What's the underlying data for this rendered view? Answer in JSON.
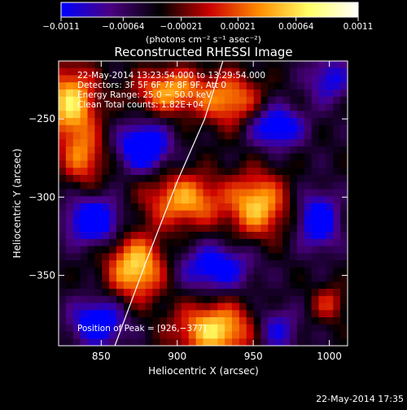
{
  "chart_data": {
    "type": "heatmap",
    "title": "Reconstructed RHESSI Image",
    "xlabel": "Heliocentric X (arcsec)",
    "ylabel": "Heliocentric Y (arcsec)",
    "xlim": [
      822,
      1012
    ],
    "ylim": [
      -395,
      -213
    ],
    "x_ticks": [
      850,
      900,
      950,
      1000
    ],
    "y_ticks": [
      -250,
      -300,
      -350
    ],
    "x_tick_labels": [
      "850",
      "900",
      "950",
      "1000"
    ],
    "y_tick_labels": [
      "−250",
      "−300",
      "−350"
    ],
    "colorbar": {
      "range": [
        -0.0011,
        0.0011
      ],
      "tick_values": [
        -0.0011,
        -0.00064,
        -0.00021,
        0.00021,
        0.00064,
        0.0011
      ],
      "tick_labels": [
        "−0.0011",
        "−0.00064",
        "−0.00021",
        "0.00021",
        "0.00064",
        "0.0011"
      ],
      "unit_text": "(photons cm⁻² s⁻¹ asec⁻²)",
      "colormap": [
        "#0000ff",
        "#4b0082",
        "#000000",
        "#cc0000",
        "#ff8c00",
        "#ffff66",
        "#ffffff"
      ]
    },
    "info_lines": [
      "22‑May‑2014 13:23:54.000 to 13:29:54.000",
      "Detectors: 3F 5F 6F 7F 8F 9F, Att 0",
      "Energy Range: 25.0 − 50.0 keV",
      "Clean    Total counts: 1.82E+04"
    ],
    "peak_label": "Position of Peak = [926,−377]",
    "limb_curve": [
      [
        859,
        -395
      ],
      [
        880,
        -340
      ],
      [
        900,
        -290
      ],
      [
        918,
        -250
      ],
      [
        930,
        -213
      ]
    ],
    "sources": [
      {
        "x": 830,
        "y": -240,
        "amp": 0.0011,
        "sx": 12,
        "sy": 16
      },
      {
        "x": 895,
        "y": -232,
        "amp": 0.0009,
        "sx": 16,
        "sy": 10
      },
      {
        "x": 935,
        "y": -238,
        "amp": 0.0008,
        "sx": 14,
        "sy": 12
      },
      {
        "x": 838,
        "y": -275,
        "amp": 0.0007,
        "sx": 10,
        "sy": 12
      },
      {
        "x": 905,
        "y": -302,
        "amp": 0.0009,
        "sx": 18,
        "sy": 12
      },
      {
        "x": 953,
        "y": -305,
        "amp": 0.001,
        "sx": 13,
        "sy": 14
      },
      {
        "x": 873,
        "y": -345,
        "amp": 0.0011,
        "sx": 13,
        "sy": 14
      },
      {
        "x": 925,
        "y": -385,
        "amp": 0.0011,
        "sx": 18,
        "sy": 12
      },
      {
        "x": 1000,
        "y": -368,
        "amp": 0.0005,
        "sx": 8,
        "sy": 8
      },
      {
        "x": 878,
        "y": -268,
        "amp": -0.0011,
        "sx": 11,
        "sy": 10
      },
      {
        "x": 965,
        "y": -255,
        "amp": -0.0009,
        "sx": 12,
        "sy": 9
      },
      {
        "x": 845,
        "y": -315,
        "amp": -0.001,
        "sx": 12,
        "sy": 10
      },
      {
        "x": 993,
        "y": -315,
        "amp": -0.0009,
        "sx": 9,
        "sy": 12
      },
      {
        "x": 925,
        "y": -345,
        "amp": -0.0008,
        "sx": 16,
        "sy": 10
      },
      {
        "x": 848,
        "y": -380,
        "amp": -0.0009,
        "sx": 12,
        "sy": 10
      },
      {
        "x": 1000,
        "y": -225,
        "amp": -0.0006,
        "sx": 10,
        "sy": 10
      },
      {
        "x": 965,
        "y": -385,
        "amp": -0.0006,
        "sx": 10,
        "sy": 10
      }
    ]
  },
  "footer": {
    "timestamp": "22‑May‑2014 17:35"
  }
}
